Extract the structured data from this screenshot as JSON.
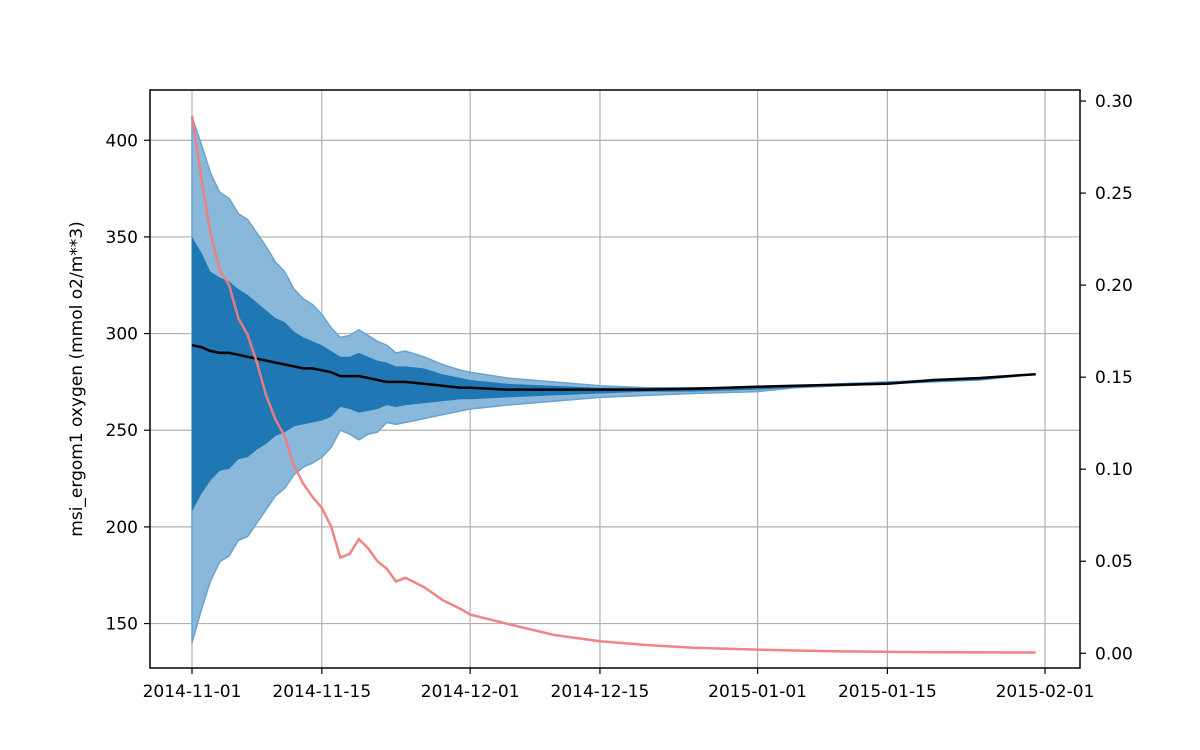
{
  "chart_data": {
    "type": "area",
    "ylabel": "msi_ergom1 oxygen (mmol o2/m**3)",
    "xlim": [
      "2014-11-01",
      "2015-02-01"
    ],
    "ylim_left": [
      127,
      426
    ],
    "ylim_right": [
      -0.008,
      0.306
    ],
    "x_ticks": [
      "2014-11-01",
      "2014-11-15",
      "2014-12-01",
      "2014-12-15",
      "2015-01-01",
      "2015-01-15",
      "2015-02-01"
    ],
    "y_ticks_left": [
      150,
      200,
      250,
      300,
      350,
      400
    ],
    "y_ticks_right": [
      0.0,
      0.05,
      0.1,
      0.15,
      0.2,
      0.25,
      0.3
    ],
    "y_tick_labels_right": [
      "0.00",
      "0.05",
      "0.10",
      "0.15",
      "0.20",
      "0.25",
      "0.30"
    ],
    "grid": true,
    "colors": {
      "outer_band": "#8ab8db",
      "outer_band_edge": "#6aa3cf",
      "inner_band": "#1f77b4",
      "mean_line": "#000000",
      "spread_line": "#f07d7d",
      "grid": "#b0b0b0"
    },
    "x_dates": [
      "2014-11-01",
      "2014-11-02",
      "2014-11-03",
      "2014-11-04",
      "2014-11-05",
      "2014-11-06",
      "2014-11-07",
      "2014-11-08",
      "2014-11-09",
      "2014-11-10",
      "2014-11-11",
      "2014-11-12",
      "2014-11-13",
      "2014-11-14",
      "2014-11-15",
      "2014-11-16",
      "2014-11-17",
      "2014-11-18",
      "2014-11-19",
      "2014-11-20",
      "2014-11-21",
      "2014-11-22",
      "2014-11-23",
      "2014-11-24",
      "2014-11-26",
      "2014-11-28",
      "2014-11-30",
      "2014-12-01",
      "2014-12-05",
      "2014-12-10",
      "2014-12-15",
      "2014-12-20",
      "2014-12-25",
      "2015-01-01",
      "2015-01-05",
      "2015-01-10",
      "2015-01-15",
      "2015-01-20",
      "2015-01-25",
      "2015-01-31"
    ],
    "series": [
      {
        "axis": "left",
        "kind": "band",
        "lower": [
          140,
          157,
          172,
          182,
          185,
          193,
          195,
          202,
          209,
          216,
          220,
          227,
          231,
          233,
          236,
          241,
          250,
          248,
          245,
          248,
          249,
          254,
          253,
          254,
          256,
          258,
          260,
          261,
          263,
          265,
          267,
          268,
          269,
          270,
          272,
          273,
          274,
          275,
          276,
          279
        ],
        "upper": [
          412,
          398,
          383,
          373,
          370,
          362,
          359,
          352,
          345,
          337,
          332,
          323,
          318,
          315,
          310,
          303,
          298,
          299,
          302,
          299,
          296,
          294,
          290,
          291,
          288,
          284,
          281,
          280,
          277,
          275,
          273,
          272,
          272,
          272,
          273,
          274,
          275,
          276,
          277,
          279
        ]
      },
      {
        "axis": "left",
        "kind": "band",
        "lower": [
          208,
          217,
          224,
          229,
          230,
          235,
          236,
          240,
          243,
          247,
          249,
          252,
          253,
          254,
          255,
          257,
          262,
          261,
          259,
          260,
          261,
          263,
          262,
          263,
          264,
          265,
          266,
          266,
          267,
          268,
          269,
          270,
          270,
          271,
          272,
          273,
          274,
          275,
          276,
          279
        ],
        "upper": [
          350,
          342,
          332,
          329,
          327,
          323,
          320,
          316,
          312,
          308,
          306,
          301,
          298,
          296,
          294,
          291,
          288,
          288,
          290,
          288,
          286,
          285,
          283,
          283,
          282,
          279,
          277,
          276,
          274,
          273,
          272,
          272,
          272,
          272,
          273,
          274,
          275,
          276,
          277,
          279
        ]
      },
      {
        "axis": "left",
        "kind": "line",
        "values": [
          294,
          293,
          291,
          290,
          290,
          289,
          288,
          287,
          286,
          285,
          284,
          283,
          282,
          282,
          281,
          280,
          278,
          278,
          278,
          277,
          276,
          275,
          275,
          275,
          274,
          273,
          272,
          272,
          271,
          271,
          271,
          271,
          271.5,
          272.5,
          273,
          273.5,
          274,
          276,
          277,
          279
        ]
      },
      {
        "axis": "right",
        "kind": "line",
        "values": [
          0.292,
          0.258,
          0.228,
          0.208,
          0.2,
          0.182,
          0.173,
          0.158,
          0.14,
          0.127,
          0.118,
          0.102,
          0.092,
          0.085,
          0.079,
          0.069,
          0.052,
          0.054,
          0.062,
          0.057,
          0.05,
          0.046,
          0.039,
          0.041,
          0.036,
          0.029,
          0.024,
          0.021,
          0.016,
          0.01,
          0.0065,
          0.0045,
          0.003,
          0.002,
          0.0015,
          0.001,
          0.0008,
          0.0006,
          0.0005,
          0.0004
        ]
      }
    ]
  }
}
